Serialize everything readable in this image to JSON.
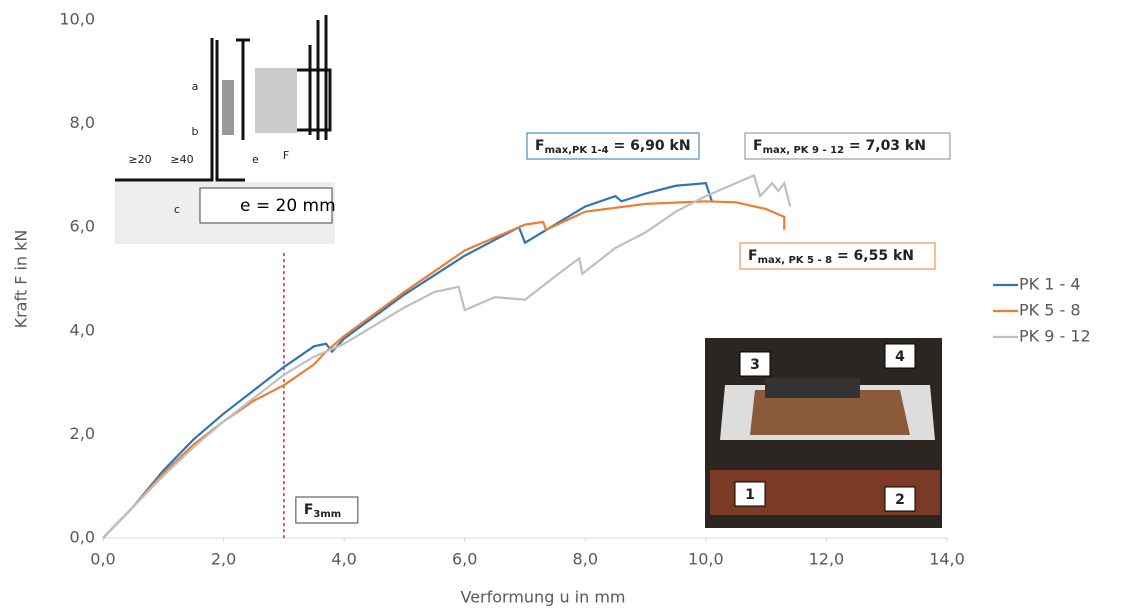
{
  "chart_data": {
    "type": "line",
    "xlabel": "Verformung u in mm",
    "ylabel": "Kraft F in kN",
    "xlim": [
      0,
      14
    ],
    "ylim": [
      0,
      10
    ],
    "xticks": [
      {
        "value": 0,
        "label": "0,0"
      },
      {
        "value": 2,
        "label": "2,0"
      },
      {
        "value": 4,
        "label": "4,0"
      },
      {
        "value": 6,
        "label": "6,0"
      },
      {
        "value": 8,
        "label": "8,0"
      },
      {
        "value": 10,
        "label": "10,0"
      },
      {
        "value": 12,
        "label": "12,0"
      },
      {
        "value": 14,
        "label": "14,0"
      }
    ],
    "yticks": [
      {
        "value": 0,
        "label": "0,0"
      },
      {
        "value": 2,
        "label": "2,0"
      },
      {
        "value": 4,
        "label": "4,0"
      },
      {
        "value": 6,
        "label": "6,0"
      },
      {
        "value": 8,
        "label": "8,0"
      },
      {
        "value": 10,
        "label": "10,0"
      }
    ],
    "legend": "right",
    "series": [
      {
        "name": "PK 1 - 4",
        "color": "#2e75b6",
        "x": [
          0,
          0.5,
          1,
          1.5,
          2,
          2.5,
          3,
          3.5,
          3.7,
          3.8,
          4,
          5,
          6,
          6.9,
          7,
          7.5,
          8,
          8.5,
          8.6,
          9,
          9.5,
          10,
          10.1
        ],
        "values": [
          0,
          0.6,
          1.3,
          1.9,
          2.4,
          2.85,
          3.3,
          3.7,
          3.75,
          3.6,
          3.85,
          4.7,
          5.45,
          6.0,
          5.7,
          6.05,
          6.4,
          6.6,
          6.5,
          6.65,
          6.8,
          6.85,
          6.5
        ]
      },
      {
        "name": "PK 5 - 8",
        "color": "#ed7d31",
        "x": [
          0,
          0.5,
          1,
          1.5,
          2,
          2.5,
          3,
          3.5,
          3.7,
          4,
          5,
          6,
          7,
          7.3,
          7.35,
          8,
          9,
          10,
          10.5,
          11,
          11.3,
          11.3
        ],
        "values": [
          0,
          0.6,
          1.25,
          1.8,
          2.25,
          2.65,
          2.95,
          3.35,
          3.6,
          3.9,
          4.75,
          5.55,
          6.05,
          6.1,
          5.95,
          6.3,
          6.45,
          6.5,
          6.48,
          6.35,
          6.2,
          5.95
        ]
      },
      {
        "name": "PK 9 - 12",
        "color": "#bfbfbf",
        "x": [
          0,
          0.5,
          1,
          1.5,
          2,
          2.5,
          3,
          3.5,
          4,
          4.5,
          5,
          5.5,
          5.9,
          6,
          6.5,
          7,
          7.5,
          7.9,
          7.95,
          8.5,
          9,
          9.5,
          10,
          10.5,
          10.8,
          10.9,
          11.1,
          11.2,
          11.3,
          11.4
        ],
        "values": [
          0,
          0.6,
          1.2,
          1.75,
          2.25,
          2.7,
          3.15,
          3.5,
          3.75,
          4.1,
          4.45,
          4.75,
          4.85,
          4.4,
          4.65,
          4.6,
          5.05,
          5.4,
          5.1,
          5.6,
          5.9,
          6.3,
          6.6,
          6.85,
          7.0,
          6.6,
          6.85,
          6.7,
          6.85,
          6.4
        ]
      }
    ],
    "vline": {
      "x": 3,
      "color": "#d62728",
      "label": {
        "text": "F",
        "sub": "3mm"
      }
    },
    "annotations": [
      {
        "text": "F",
        "sub": "max,PK 1-4",
        "suffix": " = 6,90 kN",
        "color": "#2e75b6"
      },
      {
        "text": "F",
        "sub": "max, PK 9 - 12",
        "suffix": " = 7,03 kN",
        "color": "#888888"
      },
      {
        "text": "F",
        "sub": "max, PK 5 - 8",
        "suffix": " = 6,55 kN",
        "color": "#ed7d31"
      }
    ],
    "inset_diagram": {
      "labels": [
        "a",
        "b",
        "c"
      ],
      "e_label": "e = 20 mm",
      "dims": [
        "≥20",
        "≥40"
      ],
      "e": "e",
      "f": "F"
    },
    "inset_photo": {
      "labels": [
        "3",
        "4",
        "1",
        "2"
      ]
    }
  }
}
